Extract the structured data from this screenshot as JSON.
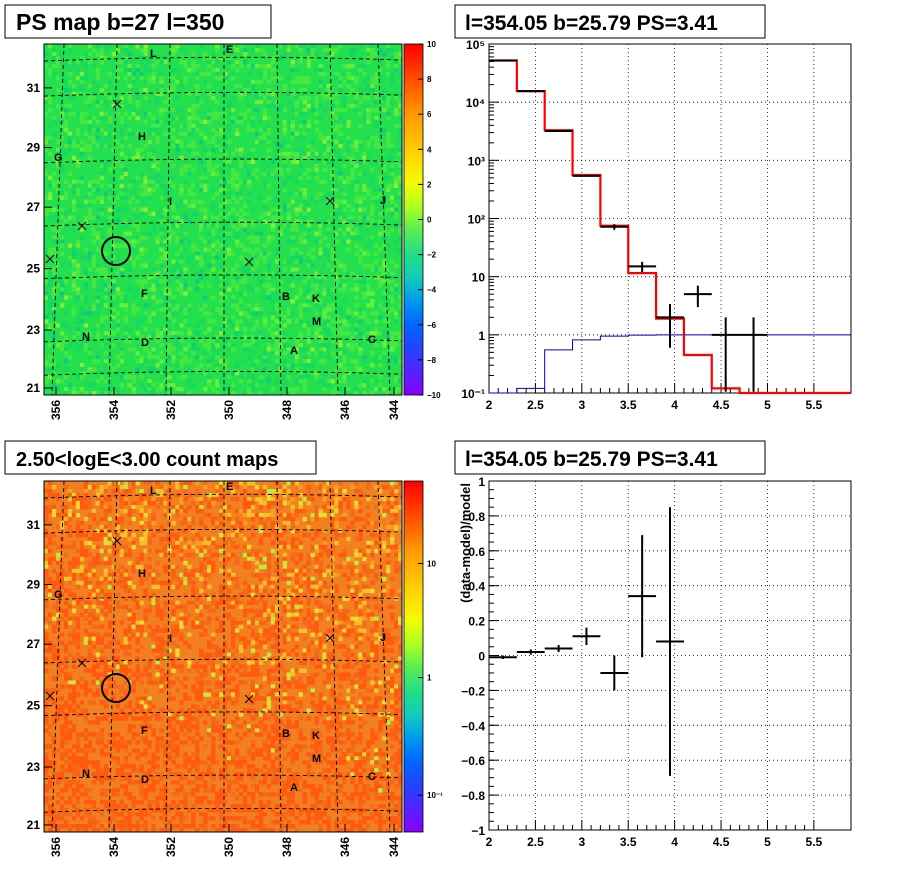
{
  "map_top": {
    "title": "PS map b=27 l=350",
    "x_ticks": [
      "356",
      "354",
      "352",
      "350",
      "348",
      "346",
      "344"
    ],
    "y_ticks": [
      "21",
      "23",
      "25",
      "27",
      "29",
      "31"
    ],
    "colorbar_ticks": [
      "10",
      "8",
      "6",
      "4",
      "2",
      "0",
      "−2",
      "−4",
      "−6",
      "−8",
      "−10"
    ],
    "letters": [
      "L",
      "E",
      "H",
      "G",
      "I",
      "J",
      "F",
      "B",
      "K",
      "M",
      "N",
      "D",
      "C",
      "A"
    ]
  },
  "map_bottom": {
    "title": "2.50<logE<3.00 count maps",
    "x_ticks": [
      "356",
      "354",
      "352",
      "350",
      "348",
      "346",
      "344"
    ],
    "y_ticks": [
      "21",
      "23",
      "25",
      "27",
      "29",
      "31"
    ],
    "colorbar_ticks": [
      "10",
      "1",
      "10⁻¹"
    ],
    "letters": [
      "L",
      "E",
      "H",
      "G",
      "I",
      "J",
      "F",
      "B",
      "K",
      "M",
      "N",
      "D",
      "C",
      "A"
    ]
  },
  "chart_data": [
    {
      "type": "line",
      "title": "l=354.05 b=25.79 PS=3.41",
      "xlabel": "",
      "ylabel": "",
      "xlim": [
        2,
        5.9
      ],
      "ylim": [
        0.1,
        100000
      ],
      "log_y": true,
      "grid": true,
      "x_ticks": [
        "2",
        "2.5",
        "3",
        "3.5",
        "4",
        "4.5",
        "5",
        "5.5"
      ],
      "y_ticks": [
        "10⁻¹",
        "1",
        "10",
        "10²",
        "10³",
        "10⁴",
        "10⁵"
      ],
      "edges": [
        2.0,
        2.3,
        2.6,
        2.9,
        3.2,
        3.5,
        3.8,
        4.1,
        4.4,
        4.7,
        5.0,
        5.3,
        5.6,
        5.9
      ],
      "series": [
        {
          "values": [
            52000,
            15500,
            3300,
            560,
            75,
            11.5,
            1.9,
            0.45,
            0.12,
            0.1,
            0.1,
            0.1,
            0.1
          ],
          "color": "#ff0000"
        },
        {
          "values": [
            0.1,
            0.12,
            0.55,
            0.82,
            0.95,
            0.99,
            1.0,
            1.0,
            1.0,
            1.0,
            1.0,
            1.0,
            1.0
          ],
          "color": "#0000cc"
        },
        {
          "values": [
            52000,
            15500,
            3200,
            540,
            72,
            15,
            2.0,
            5.0,
            1.0,
            1.0
          ],
          "yerr_lo": [
            0,
            0,
            0,
            0,
            8,
            3,
            1.4,
            2.0,
            0.9,
            0.9
          ],
          "yerr_hi": [
            0,
            0,
            0,
            0,
            8,
            3,
            1.4,
            2.0,
            1.0,
            1.0
          ],
          "x": [
            2.15,
            2.45,
            2.75,
            3.05,
            3.35,
            3.65,
            3.95,
            4.25,
            4.55,
            4.85
          ],
          "color": "#000000"
        }
      ]
    },
    {
      "type": "scatter",
      "title": "l=354.05 b=25.79 PS=3.41",
      "xlabel": "",
      "ylabel": "(data-model)/model",
      "xlim": [
        2,
        5.9
      ],
      "ylim": [
        -1,
        1
      ],
      "grid": true,
      "x_ticks": [
        "2",
        "2.5",
        "3",
        "3.5",
        "4",
        "4.5",
        "5",
        "5.5"
      ],
      "y_ticks": [
        "−1",
        "−0.8",
        "−0.6",
        "−0.4",
        "−0.2",
        "0",
        "0.2",
        "0.4",
        "0.6",
        "0.8",
        "1"
      ],
      "points": [
        {
          "x": 2.15,
          "y": -0.01,
          "yerr": 0.01
        },
        {
          "x": 2.45,
          "y": 0.02,
          "yerr": 0.015
        },
        {
          "x": 2.75,
          "y": 0.04,
          "yerr": 0.02
        },
        {
          "x": 3.05,
          "y": 0.11,
          "yerr": 0.05
        },
        {
          "x": 3.35,
          "y": -0.1,
          "yerr": 0.1
        },
        {
          "x": 3.65,
          "y": 0.34,
          "yerr": 0.35
        },
        {
          "x": 3.95,
          "y": 0.08,
          "yerr": 0.77
        }
      ]
    }
  ]
}
